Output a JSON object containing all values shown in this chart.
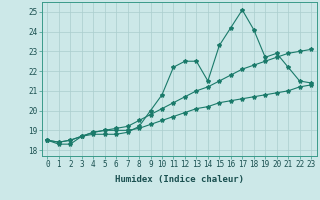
{
  "xlabel": "Humidex (Indice chaleur)",
  "background_color": "#cce8e8",
  "grid_color": "#aacece",
  "line_color": "#1a7a6a",
  "xlim": [
    -0.5,
    23.5
  ],
  "ylim": [
    17.7,
    25.5
  ],
  "xticks": [
    0,
    1,
    2,
    3,
    4,
    5,
    6,
    7,
    8,
    9,
    10,
    11,
    12,
    13,
    14,
    15,
    16,
    17,
    18,
    19,
    20,
    21,
    22,
    23
  ],
  "yticks": [
    18,
    19,
    20,
    21,
    22,
    23,
    24,
    25
  ],
  "x": [
    0,
    1,
    2,
    3,
    4,
    5,
    6,
    7,
    8,
    9,
    10,
    11,
    12,
    13,
    14,
    15,
    16,
    17,
    18,
    19,
    20,
    21,
    22,
    23
  ],
  "y_main": [
    18.5,
    18.3,
    18.3,
    18.7,
    18.8,
    18.8,
    18.8,
    18.9,
    19.2,
    20.0,
    20.8,
    22.2,
    22.5,
    22.5,
    21.5,
    23.3,
    24.2,
    25.1,
    24.1,
    22.7,
    22.9,
    22.2,
    21.5,
    21.4
  ],
  "y_line2": [
    18.5,
    18.4,
    18.5,
    18.7,
    18.9,
    19.0,
    19.1,
    19.2,
    19.5,
    19.8,
    20.1,
    20.4,
    20.7,
    21.0,
    21.2,
    21.5,
    21.8,
    22.1,
    22.3,
    22.5,
    22.7,
    22.9,
    23.0,
    23.1
  ],
  "y_line3": [
    18.5,
    18.4,
    18.5,
    18.7,
    18.9,
    19.0,
    19.0,
    19.0,
    19.1,
    19.3,
    19.5,
    19.7,
    19.9,
    20.1,
    20.2,
    20.4,
    20.5,
    20.6,
    20.7,
    20.8,
    20.9,
    21.0,
    21.2,
    21.3
  ]
}
